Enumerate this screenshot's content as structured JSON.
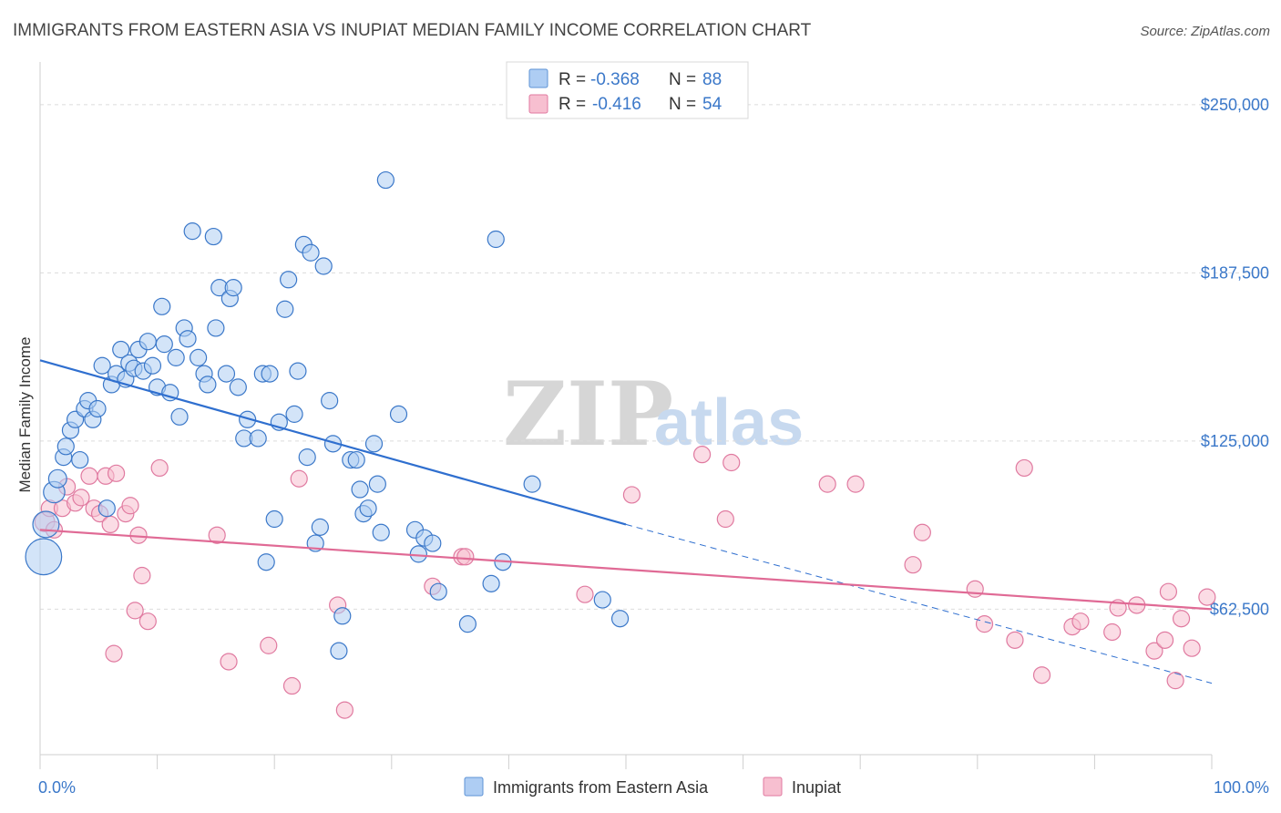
{
  "title": "IMMIGRANTS FROM EASTERN ASIA VS INUPIAT MEDIAN FAMILY INCOME CORRELATION CHART",
  "source": "Source: ZipAtlas.com",
  "watermark": {
    "zip": "ZIP",
    "atlas": "atlas"
  },
  "legend": {
    "rows": [
      {
        "r_label": "R =",
        "r_value": "-0.368",
        "n_label": "N =",
        "n_value": "88",
        "color": "#aecdf3",
        "stroke": "#5d93d6"
      },
      {
        "r_label": "R =",
        "r_value": "-0.416",
        "n_label": "N =",
        "n_value": "54",
        "color": "#f7bfd0",
        "stroke": "#e07aa0"
      }
    ]
  },
  "bottom_legend": [
    {
      "label": "Immigrants from Eastern Asia",
      "color": "#aecdf3",
      "stroke": "#5d93d6"
    },
    {
      "label": "Inupiat",
      "color": "#f7bfd0",
      "stroke": "#e07aa0"
    }
  ],
  "chart_data": {
    "type": "scatter",
    "xlabel": "",
    "ylabel": "Median Family Income",
    "xlim": [
      0,
      100
    ],
    "ylim": [
      12500,
      262500
    ],
    "x_tick_labels": [
      {
        "value": 0,
        "label": "0.0%"
      },
      {
        "value": 100,
        "label": "100.0%"
      }
    ],
    "y_ticks": [
      {
        "value": 62500,
        "label": "$62,500"
      },
      {
        "value": 125000,
        "label": "$125,000"
      },
      {
        "value": 187500,
        "label": "$187,500"
      },
      {
        "value": 250000,
        "label": "$250,000"
      }
    ],
    "grid": "horizontal-dashed",
    "colors": {
      "blue": "#3b78c9",
      "blue_fill": "#aecdf3",
      "pink": "#e07aa0",
      "pink_fill": "#f7bfd0",
      "blue_line": "#2f6fcf",
      "pink_line": "#e06a95"
    },
    "series": [
      {
        "name": "Immigrants from Eastern Asia",
        "color": "blue",
        "points": [
          [
            0.3,
            82000,
            2.2
          ],
          [
            0.5,
            94000,
            1.6
          ],
          [
            1.2,
            106000,
            1.3
          ],
          [
            1.5,
            111000,
            1.1
          ],
          [
            2.0,
            119000,
            1.0
          ],
          [
            2.2,
            123000,
            1.0
          ],
          [
            2.6,
            129000,
            1.0
          ],
          [
            3.0,
            133000,
            1.0
          ],
          [
            3.4,
            118000,
            1.0
          ],
          [
            3.8,
            137000,
            1.0
          ],
          [
            4.1,
            140000,
            1.0
          ],
          [
            4.5,
            133000,
            1.0
          ],
          [
            4.9,
            137000,
            1.0
          ],
          [
            5.7,
            100000,
            1.0
          ],
          [
            5.3,
            153000,
            1.0
          ],
          [
            6.1,
            146000,
            1.0
          ],
          [
            6.5,
            150000,
            1.0
          ],
          [
            6.9,
            159000,
            1.0
          ],
          [
            7.3,
            148000,
            1.0
          ],
          [
            7.6,
            154000,
            1.0
          ],
          [
            8.0,
            152000,
            1.0
          ],
          [
            8.4,
            159000,
            1.0
          ],
          [
            8.8,
            151000,
            1.0
          ],
          [
            9.2,
            162000,
            1.0
          ],
          [
            9.6,
            153000,
            1.0
          ],
          [
            10.0,
            145000,
            1.0
          ],
          [
            10.4,
            175000,
            1.0
          ],
          [
            10.6,
            161000,
            1.0
          ],
          [
            11.1,
            143000,
            1.0
          ],
          [
            11.6,
            156000,
            1.0
          ],
          [
            11.9,
            134000,
            1.0
          ],
          [
            12.3,
            167000,
            1.0
          ],
          [
            12.6,
            163000,
            1.0
          ],
          [
            13.0,
            203000,
            1.0
          ],
          [
            13.5,
            156000,
            1.0
          ],
          [
            14.0,
            150000,
            1.0
          ],
          [
            14.3,
            146000,
            1.0
          ],
          [
            14.8,
            201000,
            1.0
          ],
          [
            15.0,
            167000,
            1.0
          ],
          [
            15.3,
            182000,
            1.0
          ],
          [
            15.9,
            150000,
            1.0
          ],
          [
            16.2,
            178000,
            1.0
          ],
          [
            16.5,
            182000,
            1.0
          ],
          [
            16.9,
            145000,
            1.0
          ],
          [
            17.4,
            126000,
            1.0
          ],
          [
            17.7,
            133000,
            1.0
          ],
          [
            18.6,
            126000,
            1.0
          ],
          [
            19.0,
            150000,
            1.0
          ],
          [
            19.3,
            80000,
            1.0
          ],
          [
            19.6,
            150000,
            1.0
          ],
          [
            20.0,
            96000,
            1.0
          ],
          [
            20.4,
            132000,
            1.0
          ],
          [
            20.9,
            174000,
            1.0
          ],
          [
            21.2,
            185000,
            1.0
          ],
          [
            21.7,
            135000,
            1.0
          ],
          [
            22.0,
            151000,
            1.0
          ],
          [
            22.5,
            198000,
            1.0
          ],
          [
            22.8,
            119000,
            1.0
          ],
          [
            23.1,
            195000,
            1.0
          ],
          [
            23.5,
            87000,
            1.0
          ],
          [
            23.9,
            93000,
            1.0
          ],
          [
            24.2,
            190000,
            1.0
          ],
          [
            24.7,
            140000,
            1.0
          ],
          [
            25.0,
            124000,
            1.0
          ],
          [
            25.5,
            47000,
            1.0
          ],
          [
            25.8,
            60000,
            1.0
          ],
          [
            26.5,
            118000,
            1.0
          ],
          [
            27.0,
            118000,
            1.0
          ],
          [
            27.3,
            107000,
            1.0
          ],
          [
            27.6,
            98000,
            1.0
          ],
          [
            28.0,
            100000,
            1.0
          ],
          [
            28.5,
            124000,
            1.0
          ],
          [
            28.8,
            109000,
            1.0
          ],
          [
            29.1,
            91000,
            1.0
          ],
          [
            30.6,
            135000,
            1.0
          ],
          [
            32.0,
            92000,
            1.0
          ],
          [
            32.3,
            83000,
            1.0
          ],
          [
            32.8,
            89000,
            1.0
          ],
          [
            33.5,
            87000,
            1.0
          ],
          [
            34.0,
            69000,
            1.0
          ],
          [
            29.5,
            222000,
            1.0
          ],
          [
            36.5,
            57000,
            1.0
          ],
          [
            38.5,
            72000,
            1.0
          ],
          [
            38.9,
            200000,
            1.0
          ],
          [
            39.5,
            80000,
            1.0
          ],
          [
            42.0,
            109000,
            1.0
          ],
          [
            48.0,
            66000,
            1.0
          ],
          [
            49.5,
            59000,
            1.0
          ]
        ]
      },
      {
        "name": "Inupiat",
        "color": "pink",
        "points": [
          [
            0.4,
            95000,
            1.2
          ],
          [
            0.8,
            100000,
            1.0
          ],
          [
            1.2,
            92000,
            1.0
          ],
          [
            1.9,
            100000,
            1.0
          ],
          [
            2.3,
            108000,
            1.0
          ],
          [
            3.0,
            102000,
            1.0
          ],
          [
            3.5,
            104000,
            1.0
          ],
          [
            4.2,
            112000,
            1.0
          ],
          [
            4.6,
            100000,
            1.0
          ],
          [
            5.1,
            98000,
            1.0
          ],
          [
            5.6,
            112000,
            1.0
          ],
          [
            6.0,
            94000,
            1.0
          ],
          [
            6.3,
            46000,
            1.0
          ],
          [
            6.5,
            113000,
            1.0
          ],
          [
            7.3,
            98000,
            1.0
          ],
          [
            7.7,
            101000,
            1.0
          ],
          [
            8.1,
            62000,
            1.0
          ],
          [
            8.4,
            90000,
            1.0
          ],
          [
            8.7,
            75000,
            1.0
          ],
          [
            9.2,
            58000,
            1.0
          ],
          [
            10.2,
            115000,
            1.0
          ],
          [
            15.1,
            90000,
            1.0
          ],
          [
            16.1,
            43000,
            1.0
          ],
          [
            19.5,
            49000,
            1.0
          ],
          [
            21.5,
            34000,
            1.0
          ],
          [
            22.1,
            111000,
            1.0
          ],
          [
            25.4,
            64000,
            1.0
          ],
          [
            26.0,
            25000,
            1.0
          ],
          [
            33.5,
            71000,
            1.0
          ],
          [
            36.0,
            82000,
            1.0
          ],
          [
            36.3,
            82000,
            1.0
          ],
          [
            46.5,
            68000,
            1.0
          ],
          [
            50.5,
            105000,
            1.0
          ],
          [
            56.5,
            120000,
            1.0
          ],
          [
            58.5,
            96000,
            1.0
          ],
          [
            59.0,
            117000,
            1.0
          ],
          [
            67.2,
            109000,
            1.0
          ],
          [
            69.6,
            109000,
            1.0
          ],
          [
            74.5,
            79000,
            1.0
          ],
          [
            75.3,
            91000,
            1.0
          ],
          [
            79.8,
            70000,
            1.0
          ],
          [
            80.6,
            57000,
            1.0
          ],
          [
            83.2,
            51000,
            1.0
          ],
          [
            84.0,
            115000,
            1.0
          ],
          [
            85.5,
            38000,
            1.0
          ],
          [
            88.1,
            56000,
            1.0
          ],
          [
            88.8,
            58000,
            1.0
          ],
          [
            91.5,
            54000,
            1.0
          ],
          [
            92.0,
            63000,
            1.0
          ],
          [
            93.6,
            64000,
            1.0
          ],
          [
            95.1,
            47000,
            1.0
          ],
          [
            96.0,
            51000,
            1.0
          ],
          [
            96.3,
            69000,
            1.0
          ],
          [
            96.9,
            36000,
            1.0
          ],
          [
            97.4,
            59000,
            1.0
          ],
          [
            98.3,
            48000,
            1.0
          ],
          [
            99.6,
            67000,
            1.0
          ]
        ]
      }
    ],
    "trend_lines": [
      {
        "series": "Immigrants from Eastern Asia",
        "solid": [
          [
            0,
            155000
          ],
          [
            50,
            94000
          ]
        ],
        "dashed": [
          [
            50,
            94000
          ],
          [
            100,
            35000
          ]
        ]
      },
      {
        "series": "Inupiat",
        "solid": [
          [
            0,
            92000
          ],
          [
            100,
            62500
          ]
        ]
      }
    ]
  }
}
